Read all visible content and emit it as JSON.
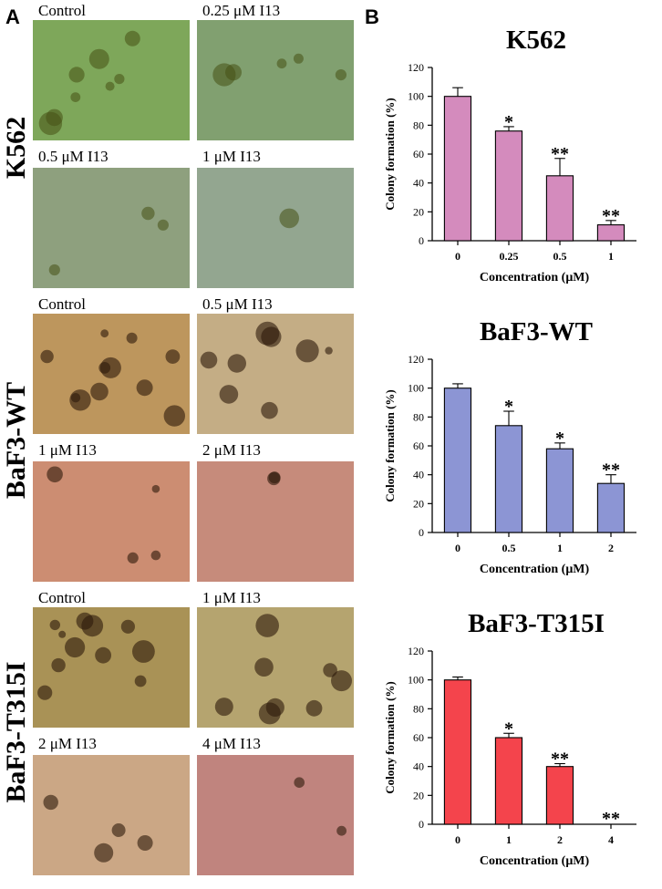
{
  "panel_labels": {
    "a": "A",
    "b": "B"
  },
  "cell_lines": [
    "K562",
    "BaF3-WT",
    "BaF3-T315I"
  ],
  "images": {
    "k562": [
      {
        "caption": "Control",
        "tint": "#86b260"
      },
      {
        "caption": "0.25 μM I13",
        "tint": "#8aab78"
      },
      {
        "caption": "0.5 μM I13",
        "tint": "#97ab86"
      },
      {
        "caption": "1 μM I13",
        "tint": "#9db19a"
      }
    ],
    "wt": [
      {
        "caption": "Control",
        "tint": "#c9a063"
      },
      {
        "caption": "0.5 μM I13",
        "tint": "#d1b88e"
      },
      {
        "caption": "1 μM I13",
        "tint": "#d9967a"
      },
      {
        "caption": "2 μM I13",
        "tint": "#d39483"
      }
    ],
    "t315i": [
      {
        "caption": "Control",
        "tint": "#b49c5c"
      },
      {
        "caption": "1 μM I13",
        "tint": "#c1af76"
      },
      {
        "caption": "2 μM I13",
        "tint": "#d8b28e"
      },
      {
        "caption": "4 μM I13",
        "tint": "#cd8d86"
      }
    ]
  },
  "chart_data": [
    {
      "type": "bar",
      "title": "K562",
      "xlabel": "Concentration (μM)",
      "ylabel": "Colony formation (%)",
      "categories": [
        "0",
        "0.25",
        "0.5",
        "1"
      ],
      "values": [
        100,
        76,
        45,
        11
      ],
      "errors": [
        6,
        3,
        12,
        3
      ],
      "significance": [
        "",
        "*",
        "**",
        "**"
      ],
      "ylim": [
        0,
        120
      ],
      "yticks": [
        0,
        20,
        40,
        60,
        80,
        100,
        120
      ],
      "color": "#d48bbd"
    },
    {
      "type": "bar",
      "title": "BaF3-WT",
      "xlabel": "Concentration (μM)",
      "ylabel": "Colony formation (%)",
      "categories": [
        "0",
        "0.5",
        "1",
        "2"
      ],
      "values": [
        100,
        74,
        58,
        34
      ],
      "errors": [
        3,
        10,
        4,
        6
      ],
      "significance": [
        "",
        "*",
        "*",
        "**"
      ],
      "ylim": [
        0,
        120
      ],
      "yticks": [
        0,
        20,
        40,
        60,
        80,
        100,
        120
      ],
      "color": "#8c95d4"
    },
    {
      "type": "bar",
      "title": "BaF3-T315I",
      "xlabel": "Concentration (μM)",
      "ylabel": "Colony formation (%)",
      "categories": [
        "0",
        "1",
        "2",
        "4"
      ],
      "values": [
        100,
        60,
        40,
        0
      ],
      "errors": [
        2,
        3,
        2,
        0
      ],
      "significance": [
        "",
        "*",
        "**",
        "**"
      ],
      "ylim": [
        0,
        120
      ],
      "yticks": [
        0,
        20,
        40,
        60,
        80,
        100,
        120
      ],
      "color": "#f4444c"
    }
  ]
}
